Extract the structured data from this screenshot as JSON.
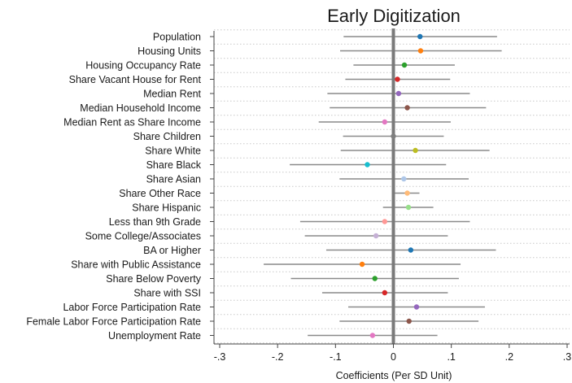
{
  "chart_data": {
    "type": "scatter",
    "subtype": "coefficient-plot",
    "title": "Early Digitization",
    "xlabel": "Coefficients (Per SD Unit)",
    "ylabel": "",
    "xlim": [
      -0.3,
      0.3
    ],
    "xticks": [
      -0.3,
      -0.2,
      -0.1,
      0,
      0.1,
      0.2,
      0.3
    ],
    "xtick_labels": [
      "-.3",
      "-.2",
      "-.1",
      "0",
      ".1",
      ".2",
      ".3"
    ],
    "grid": "dotted horizontal lines between rows",
    "zero_line": true,
    "points": [
      {
        "label": "Population",
        "estimate": 0.046,
        "ci": [
          -0.086,
          0.179
        ],
        "color": "#1f77b4"
      },
      {
        "label": "Housing Units",
        "estimate": 0.047,
        "ci": [
          -0.092,
          0.187
        ],
        "color": "#ff7f0e"
      },
      {
        "label": "Housing Occupancy Rate",
        "estimate": 0.019,
        "ci": [
          -0.069,
          0.106
        ],
        "color": "#2ca02c"
      },
      {
        "label": "Share Vacant House for Rent",
        "estimate": 0.007,
        "ci": [
          -0.083,
          0.098
        ],
        "color": "#d62728"
      },
      {
        "label": "Median Rent",
        "estimate": 0.009,
        "ci": [
          -0.114,
          0.132
        ],
        "color": "#9467bd"
      },
      {
        "label": "Median Household Income",
        "estimate": 0.024,
        "ci": [
          -0.11,
          0.16
        ],
        "color": "#8c564b"
      },
      {
        "label": "Median Rent as Share Income",
        "estimate": -0.015,
        "ci": [
          -0.129,
          0.099
        ],
        "color": "#e377c2"
      },
      {
        "label": "Share Children",
        "estimate": 0.0,
        "ci": [
          -0.087,
          0.087
        ],
        "color": "#7f7f7f"
      },
      {
        "label": "Share White",
        "estimate": 0.038,
        "ci": [
          -0.091,
          0.166
        ],
        "color": "#bcbd22"
      },
      {
        "label": "Share Black",
        "estimate": -0.045,
        "ci": [
          -0.179,
          0.091
        ],
        "color": "#17becf"
      },
      {
        "label": "Share Asian",
        "estimate": 0.018,
        "ci": [
          -0.093,
          0.13
        ],
        "color": "#aec7e8"
      },
      {
        "label": "Share Other Race",
        "estimate": 0.024,
        "ci": [
          -0.001,
          0.045
        ],
        "color": "#ffbb78"
      },
      {
        "label": "Share Hispanic",
        "estimate": 0.026,
        "ci": [
          -0.018,
          0.069
        ],
        "color": "#98df8a"
      },
      {
        "label": "Less than 9th Grade",
        "estimate": -0.015,
        "ci": [
          -0.161,
          0.132
        ],
        "color": "#ff9896"
      },
      {
        "label": "Some College/Associates",
        "estimate": -0.03,
        "ci": [
          -0.153,
          0.094
        ],
        "color": "#c5b0d5"
      },
      {
        "label": "BA or Higher",
        "estimate": 0.03,
        "ci": [
          -0.116,
          0.177
        ],
        "color": "#1f77b4"
      },
      {
        "label": "Share with Public Assistance",
        "estimate": -0.054,
        "ci": [
          -0.224,
          0.116
        ],
        "color": "#ff7f0e"
      },
      {
        "label": "Share Below Poverty",
        "estimate": -0.032,
        "ci": [
          -0.177,
          0.113
        ],
        "color": "#2ca02c"
      },
      {
        "label": "Share with SSI",
        "estimate": -0.015,
        "ci": [
          -0.123,
          0.094
        ],
        "color": "#d62728"
      },
      {
        "label": "Labor Force Participation Rate",
        "estimate": 0.04,
        "ci": [
          -0.078,
          0.158
        ],
        "color": "#9467bd"
      },
      {
        "label": "Female Labor Force Participation Rate",
        "estimate": 0.027,
        "ci": [
          -0.093,
          0.147
        ],
        "color": "#8c564b"
      },
      {
        "label": "Unemployment Rate",
        "estimate": -0.036,
        "ci": [
          -0.148,
          0.076
        ],
        "color": "#e377c2"
      }
    ]
  }
}
